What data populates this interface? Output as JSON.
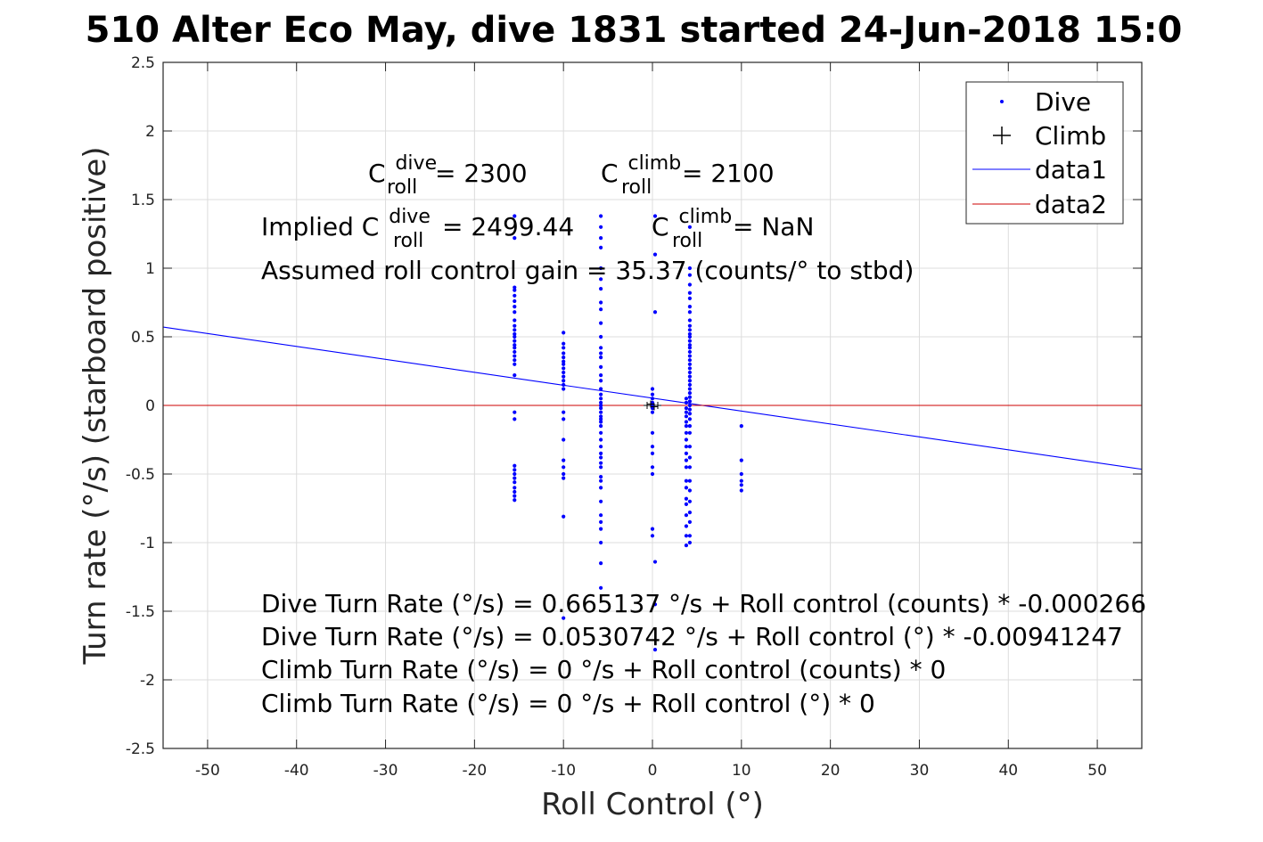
{
  "chart_data": {
    "type": "scatter",
    "title": "510 Alter Eco May, dive 1831 started 24-Jun-2018 15:0",
    "xlabel": "Roll Control (°)",
    "ylabel": "Turn rate (°/s) (starboard positive)",
    "xlim": [
      -55,
      55
    ],
    "ylim": [
      -2.5,
      2.5
    ],
    "xticks": [
      -50,
      -40,
      -30,
      -20,
      -10,
      0,
      10,
      20,
      30,
      40,
      50
    ],
    "yticks": [
      2.5,
      2,
      1.5,
      1,
      0.5,
      0,
      -0.5,
      -1,
      -1.5,
      -2,
      -2.5
    ],
    "grid": true,
    "legend_position": "top-right",
    "legend": [
      {
        "label": "Dive",
        "marker": "dot",
        "color": "#0000ff"
      },
      {
        "label": "Climb",
        "marker": "plus",
        "color": "#000000"
      },
      {
        "label": "data1",
        "marker": "line",
        "color": "#0000ff"
      },
      {
        "label": "data2",
        "marker": "line",
        "color": "#cc0000"
      }
    ],
    "series": [
      {
        "name": "Dive",
        "color": "#0000ff",
        "points": [
          [
            -15.5,
            1.38
          ],
          [
            -15.5,
            1.22
          ],
          [
            -15.5,
            0.86
          ],
          [
            -15.5,
            0.84
          ],
          [
            -15.5,
            0.8
          ],
          [
            -15.5,
            0.76
          ],
          [
            -15.5,
            0.72
          ],
          [
            -15.5,
            0.68
          ],
          [
            -15.5,
            0.62
          ],
          [
            -15.5,
            0.58
          ],
          [
            -15.5,
            0.55
          ],
          [
            -15.5,
            0.52
          ],
          [
            -15.5,
            0.5
          ],
          [
            -15.5,
            0.47
          ],
          [
            -15.5,
            0.44
          ],
          [
            -15.5,
            0.42
          ],
          [
            -15.5,
            0.39
          ],
          [
            -15.5,
            0.36
          ],
          [
            -15.5,
            0.33
          ],
          [
            -15.5,
            0.3
          ],
          [
            -15.5,
            0.22
          ],
          [
            -15.5,
            -0.05
          ],
          [
            -15.5,
            -0.1
          ],
          [
            -15.5,
            -0.44
          ],
          [
            -15.5,
            -0.47
          ],
          [
            -15.5,
            -0.5
          ],
          [
            -15.5,
            -0.53
          ],
          [
            -15.5,
            -0.56
          ],
          [
            -15.5,
            -0.6
          ],
          [
            -15.5,
            -0.63
          ],
          [
            -15.5,
            -0.66
          ],
          [
            -15.5,
            -0.69
          ],
          [
            -10,
            0.53
          ],
          [
            -10,
            0.45
          ],
          [
            -10,
            0.42
          ],
          [
            -10,
            0.38
          ],
          [
            -10,
            0.35
          ],
          [
            -10,
            0.32
          ],
          [
            -10,
            0.3
          ],
          [
            -10,
            0.27
          ],
          [
            -10,
            0.24
          ],
          [
            -10,
            0.21
          ],
          [
            -10,
            0.18
          ],
          [
            -10,
            0.15
          ],
          [
            -10,
            0.12
          ],
          [
            -10,
            -0.05
          ],
          [
            -10,
            -0.1
          ],
          [
            -10,
            -0.25
          ],
          [
            -10,
            -0.4
          ],
          [
            -10,
            -0.45
          ],
          [
            -10,
            -0.5
          ],
          [
            -10,
            -0.53
          ],
          [
            -10,
            -0.81
          ],
          [
            -10,
            -1.55
          ],
          [
            -5.8,
            1.38
          ],
          [
            -5.8,
            1.3
          ],
          [
            -5.8,
            1.22
          ],
          [
            -5.8,
            1.15
          ],
          [
            -5.8,
            1.0
          ],
          [
            -5.8,
            0.92
          ],
          [
            -5.8,
            0.85
          ],
          [
            -5.8,
            0.75
          ],
          [
            -5.8,
            0.7
          ],
          [
            -5.8,
            0.6
          ],
          [
            -5.8,
            0.5
          ],
          [
            -5.8,
            0.42
          ],
          [
            -5.8,
            0.38
          ],
          [
            -5.8,
            0.35
          ],
          [
            -5.8,
            0.28
          ],
          [
            -5.8,
            0.22
          ],
          [
            -5.8,
            0.18
          ],
          [
            -5.8,
            0.12
          ],
          [
            -5.8,
            0.08
          ],
          [
            -5.8,
            0.05
          ],
          [
            -5.8,
            0.02
          ],
          [
            -5.8,
            0.0
          ],
          [
            -5.8,
            -0.02
          ],
          [
            -5.8,
            -0.05
          ],
          [
            -5.8,
            -0.08
          ],
          [
            -5.8,
            -0.1
          ],
          [
            -5.8,
            -0.12
          ],
          [
            -5.8,
            -0.15
          ],
          [
            -5.8,
            -0.2
          ],
          [
            -5.8,
            -0.25
          ],
          [
            -5.8,
            -0.3
          ],
          [
            -5.8,
            -0.35
          ],
          [
            -5.8,
            -0.38
          ],
          [
            -5.8,
            -0.42
          ],
          [
            -5.8,
            -0.45
          ],
          [
            -5.8,
            -0.52
          ],
          [
            -5.8,
            -0.55
          ],
          [
            -5.8,
            -0.6
          ],
          [
            -5.8,
            -0.7
          ],
          [
            -5.8,
            -0.8
          ],
          [
            -5.8,
            -0.85
          ],
          [
            -5.8,
            -0.9
          ],
          [
            -5.8,
            -1.0
          ],
          [
            -5.8,
            -1.15
          ],
          [
            -5.8,
            -1.33
          ],
          [
            0,
            0.12
          ],
          [
            0,
            0.08
          ],
          [
            0,
            0.05
          ],
          [
            0,
            0.02
          ],
          [
            0,
            0.0
          ],
          [
            0,
            -0.02
          ],
          [
            0,
            -0.05
          ],
          [
            0,
            -0.2
          ],
          [
            0,
            -0.3
          ],
          [
            0,
            -0.35
          ],
          [
            0,
            -0.45
          ],
          [
            0,
            -0.5
          ],
          [
            0,
            -0.9
          ],
          [
            0,
            -0.95
          ],
          [
            0.3,
            1.38
          ],
          [
            0.3,
            1.1
          ],
          [
            0.3,
            0.68
          ],
          [
            0.3,
            -1.14
          ],
          [
            0.3,
            -1.45
          ],
          [
            0.3,
            -1.78
          ],
          [
            3.8,
            0.05
          ],
          [
            3.8,
            0.02
          ],
          [
            3.8,
            -0.02
          ],
          [
            3.8,
            -0.05
          ],
          [
            3.8,
            -0.08
          ],
          [
            3.8,
            -0.12
          ],
          [
            3.8,
            -0.15
          ],
          [
            3.8,
            -0.2
          ],
          [
            3.8,
            -0.25
          ],
          [
            3.8,
            -0.3
          ],
          [
            3.8,
            -0.35
          ],
          [
            3.8,
            -0.4
          ],
          [
            3.8,
            -0.45
          ],
          [
            3.8,
            -0.55
          ],
          [
            3.8,
            -0.6
          ],
          [
            3.8,
            -0.68
          ],
          [
            3.8,
            -0.72
          ],
          [
            3.8,
            -0.8
          ],
          [
            3.8,
            -0.88
          ],
          [
            3.8,
            -0.95
          ],
          [
            3.8,
            -1.02
          ],
          [
            4.2,
            1.3
          ],
          [
            4.2,
            1.0
          ],
          [
            4.2,
            0.95
          ],
          [
            4.2,
            0.88
          ],
          [
            4.2,
            0.82
          ],
          [
            4.2,
            0.78
          ],
          [
            4.2,
            0.72
          ],
          [
            4.2,
            0.68
          ],
          [
            4.2,
            0.62
          ],
          [
            4.2,
            0.58
          ],
          [
            4.2,
            0.55
          ],
          [
            4.2,
            0.52
          ],
          [
            4.2,
            0.5
          ],
          [
            4.2,
            0.47
          ],
          [
            4.2,
            0.44
          ],
          [
            4.2,
            0.42
          ],
          [
            4.2,
            0.39
          ],
          [
            4.2,
            0.36
          ],
          [
            4.2,
            0.33
          ],
          [
            4.2,
            0.3
          ],
          [
            4.2,
            0.27
          ],
          [
            4.2,
            0.24
          ],
          [
            4.2,
            0.21
          ],
          [
            4.2,
            0.18
          ],
          [
            4.2,
            0.15
          ],
          [
            4.2,
            0.12
          ],
          [
            4.2,
            0.09
          ],
          [
            4.2,
            0.06
          ],
          [
            4.2,
            0.03
          ],
          [
            4.2,
            0.0
          ],
          [
            4.2,
            -0.03
          ],
          [
            4.2,
            -0.06
          ],
          [
            4.2,
            -0.1
          ],
          [
            4.2,
            -0.15
          ],
          [
            4.2,
            -0.2
          ],
          [
            4.2,
            -0.3
          ],
          [
            4.2,
            -0.38
          ],
          [
            4.2,
            -0.45
          ],
          [
            4.2,
            -0.55
          ],
          [
            4.2,
            -0.62
          ],
          [
            4.2,
            -0.7
          ],
          [
            4.2,
            -0.78
          ],
          [
            4.2,
            -0.85
          ],
          [
            4.2,
            -0.95
          ],
          [
            4.2,
            -1.0
          ],
          [
            10,
            -0.15
          ],
          [
            10,
            -0.4
          ],
          [
            10,
            -0.5
          ],
          [
            10,
            -0.55
          ],
          [
            10,
            -0.58
          ],
          [
            10,
            -0.62
          ]
        ]
      },
      {
        "name": "Climb",
        "color": "#000000",
        "points": [
          [
            -0.6,
            0.0
          ],
          [
            -0.2,
            0.01
          ],
          [
            0.2,
            -0.01
          ],
          [
            0.6,
            0.0
          ]
        ]
      },
      {
        "name": "data1",
        "color": "#0000ff",
        "line": [
          [
            -55,
            0.571
          ],
          [
            55,
            -0.465
          ]
        ]
      },
      {
        "name": "data2",
        "color": "#cc0000",
        "line": [
          [
            -55,
            0
          ],
          [
            55,
            0
          ]
        ]
      }
    ]
  },
  "annotations": {
    "c_dive_base": "C",
    "c_dive_sup": "dive",
    "c_dive_sub": "roll",
    "c_dive_value": " = 2300",
    "c_climb_base": "C",
    "c_climb_sup": "climb",
    "c_climb_sub": "roll",
    "c_climb_value": " = 2100",
    "implied_prefix": "Implied C",
    "implied_dive_sup": "dive",
    "implied_dive_sub": "roll",
    "implied_dive_value": " = 2499.44",
    "implied_climb_base": "C",
    "implied_climb_sup": "climb",
    "implied_climb_sub": "roll",
    "implied_climb_value": " = NaN",
    "gain": "Assumed roll control gain = 35.37 (counts/° to stbd)",
    "eq1": "Dive Turn Rate (°/s) = 0.665137 °/s + Roll control (counts) * -0.000266",
    "eq2": "Dive Turn Rate (°/s) = 0.0530742 °/s + Roll control (°) * -0.00941247",
    "eq3": "Climb Turn Rate (°/s) = 0 °/s + Roll control (counts) * 0",
    "eq4": "Climb Turn Rate (°/s) = 0 °/s + Roll control (°) * 0"
  }
}
